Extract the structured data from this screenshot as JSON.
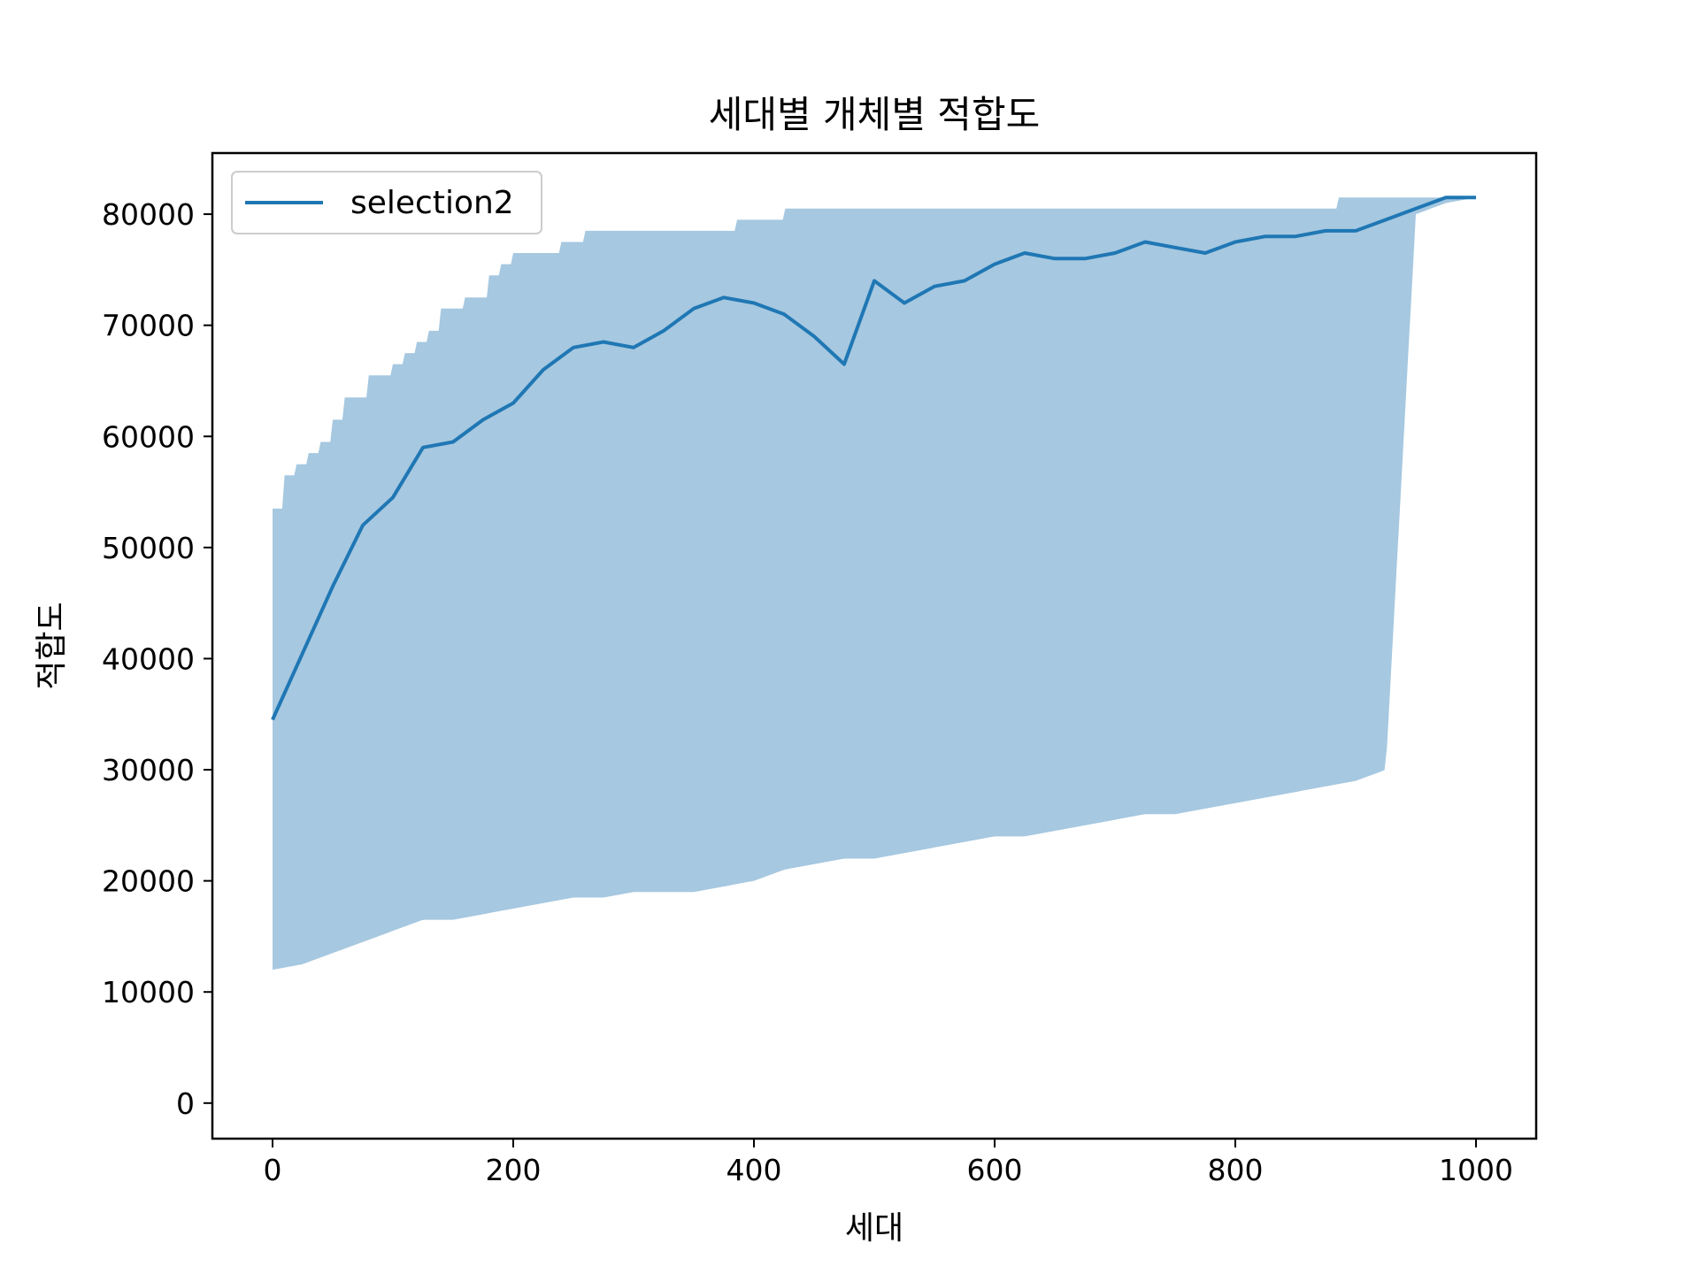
{
  "chart_data": {
    "type": "line",
    "title": "세대별 개체별 적합도",
    "xlabel": "세대",
    "ylabel": "적합도",
    "xlim": [
      -50,
      1050
    ],
    "ylim": [
      -3200,
      85500
    ],
    "xticks": [
      0,
      200,
      400,
      600,
      800,
      1000
    ],
    "xtick_labels": [
      "0",
      "200",
      "400",
      "600",
      "800",
      "1000"
    ],
    "yticks": [
      0,
      10000,
      20000,
      30000,
      40000,
      50000,
      60000,
      70000,
      80000
    ],
    "ytick_labels": [
      "0",
      "10000",
      "20000",
      "30000",
      "40000",
      "50000",
      "60000",
      "70000",
      "80000"
    ],
    "grid": false,
    "legend_position": "top-left",
    "line_color": "#1f77b4",
    "band_color": "#a6c8e0",
    "series": [
      {
        "name": "selection2",
        "kind": "line",
        "x": [
          0,
          25,
          50,
          75,
          100,
          125,
          150,
          175,
          200,
          225,
          250,
          275,
          300,
          325,
          350,
          375,
          400,
          425,
          450,
          475,
          500,
          525,
          550,
          575,
          600,
          625,
          650,
          675,
          700,
          725,
          750,
          775,
          800,
          825,
          850,
          875,
          900,
          925,
          950,
          975,
          1000
        ],
        "y": [
          34500,
          40500,
          46500,
          52000,
          54500,
          59000,
          59500,
          61500,
          63000,
          66000,
          68000,
          68500,
          68000,
          69500,
          71500,
          72500,
          72000,
          71000,
          69000,
          66500,
          74000,
          72000,
          73500,
          74000,
          75500,
          76500,
          76000,
          76000,
          76500,
          77500,
          77000,
          76500,
          77500,
          78000,
          78000,
          78500,
          78500,
          79500,
          80500,
          81500,
          81500
        ]
      },
      {
        "name": "",
        "kind": "band_max",
        "x": [
          0,
          10,
          20,
          30,
          40,
          50,
          60,
          80,
          100,
          110,
          120,
          130,
          140,
          160,
          180,
          190,
          200,
          210,
          240,
          260,
          280,
          300,
          330,
          360,
          380,
          385,
          420,
          425,
          880,
          885,
          1000
        ],
        "y": [
          53500,
          56500,
          57500,
          58500,
          59500,
          61500,
          63500,
          65500,
          66500,
          67500,
          68500,
          69500,
          71500,
          72500,
          74500,
          75500,
          76500,
          76500,
          77500,
          78500,
          78500,
          78500,
          78500,
          78500,
          78500,
          79500,
          79500,
          80500,
          80500,
          81500,
          81500
        ]
      },
      {
        "name": "",
        "kind": "band_min",
        "x": [
          0,
          25,
          50,
          75,
          100,
          125,
          150,
          175,
          200,
          225,
          250,
          275,
          300,
          325,
          350,
          375,
          400,
          425,
          450,
          475,
          500,
          525,
          550,
          575,
          600,
          625,
          650,
          675,
          700,
          725,
          750,
          775,
          800,
          825,
          850,
          875,
          900,
          925,
          950,
          975,
          1000
        ],
        "y": [
          12000,
          12500,
          13500,
          14500,
          15500,
          16500,
          16500,
          17000,
          17500,
          18000,
          18500,
          18500,
          19000,
          19000,
          19000,
          19500,
          20000,
          21000,
          21500,
          22000,
          22000,
          22500,
          23000,
          23500,
          24000,
          24000,
          24500,
          25000,
          25500,
          26000,
          26000,
          26500,
          27000,
          27500,
          28000,
          28500,
          29000,
          30000,
          80000,
          81000,
          81500
        ]
      }
    ]
  }
}
